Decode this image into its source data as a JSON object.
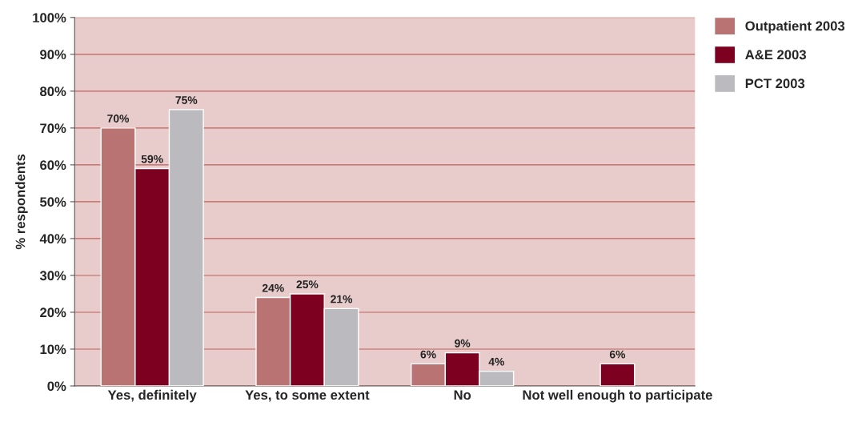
{
  "chart_data": {
    "type": "bar",
    "ylabel": "% respondents",
    "categories": [
      "Yes, definitely",
      "Yes, to some extent",
      "No",
      "Not well enough to participate"
    ],
    "series": [
      {
        "name": "Outpatient 2003",
        "color": "#b97372",
        "values": [
          70,
          24,
          6,
          null
        ],
        "value_labels": [
          "70%",
          "24%",
          "6%",
          null
        ]
      },
      {
        "name": "A&E 2003",
        "color": "#7e0021",
        "values": [
          59,
          25,
          9,
          6
        ],
        "value_labels": [
          "59%",
          "25%",
          "9%",
          "6%"
        ]
      },
      {
        "name": "PCT 2003",
        "color": "#bbbbbf",
        "values": [
          75,
          21,
          4,
          null
        ],
        "value_labels": [
          "75%",
          "21%",
          "4%",
          null
        ]
      }
    ],
    "ylim": [
      0,
      100
    ],
    "yticks": [
      {
        "value": 0,
        "label": "0%"
      },
      {
        "value": 10,
        "label": "10%"
      },
      {
        "value": 20,
        "label": "20%"
      },
      {
        "value": 30,
        "label": "30%"
      },
      {
        "value": 40,
        "label": "40%"
      },
      {
        "value": 50,
        "label": "50%"
      },
      {
        "value": 60,
        "label": "60%"
      },
      {
        "value": 70,
        "label": "70%"
      },
      {
        "value": 80,
        "label": "80%"
      },
      {
        "value": 90,
        "label": "90%"
      },
      {
        "value": 100,
        "label": "100%"
      }
    ],
    "grid": "y",
    "legend": "top right"
  }
}
